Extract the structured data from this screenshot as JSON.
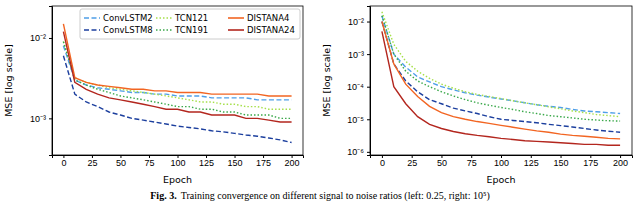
{
  "caption_label": "Fig. 3.",
  "caption": "Training convergence on different signal to noise ratios (left: 0.25, right: 10⁵)",
  "chart_data": [
    {
      "type": "line",
      "xlabel": "Epoch",
      "ylabel": "MSE [log scale]",
      "log": "y",
      "legend": "upper right",
      "xlim": [
        -10,
        210
      ],
      "xticks": [
        0,
        25,
        50,
        75,
        100,
        125,
        150,
        175,
        200
      ],
      "ylim": [
        0.00035,
        0.025
      ],
      "yticks": [
        {
          "value": 0.001,
          "label": "10⁻³"
        },
        {
          "value": 0.01,
          "label": "10⁻²"
        }
      ],
      "x": [
        0,
        10,
        20,
        30,
        40,
        50,
        60,
        70,
        80,
        90,
        100,
        110,
        120,
        130,
        140,
        150,
        160,
        170,
        180,
        190,
        200
      ],
      "series": [
        {
          "name": "ConvLSTM2",
          "color": "#4f9fe8",
          "line_style": "dashed",
          "values": [
            0.008,
            0.003,
            0.0026,
            0.0024,
            0.0023,
            0.0022,
            0.0021,
            0.0021,
            0.002,
            0.002,
            0.0019,
            0.0019,
            0.0019,
            0.0018,
            0.0018,
            0.0018,
            0.0018,
            0.0017,
            0.0017,
            0.0017,
            0.0017
          ]
        },
        {
          "name": "ConvLSTM8",
          "color": "#1c3f9e",
          "line_style": "dashed",
          "values": [
            0.006,
            0.002,
            0.0016,
            0.0014,
            0.0012,
            0.0011,
            0.001,
            0.00095,
            0.0009,
            0.00085,
            0.0008,
            0.00077,
            0.00074,
            0.0007,
            0.00068,
            0.00065,
            0.00062,
            0.0006,
            0.00057,
            0.00054,
            0.0005
          ]
        },
        {
          "name": "TCN121",
          "color": "#a6e04a",
          "line_style": "dotted",
          "values": [
            0.009,
            0.0032,
            0.0028,
            0.0026,
            0.0024,
            0.0023,
            0.0022,
            0.0021,
            0.002,
            0.0019,
            0.0018,
            0.0017,
            0.0016,
            0.0016,
            0.0015,
            0.0015,
            0.0014,
            0.0014,
            0.0013,
            0.0013,
            0.0013
          ]
        },
        {
          "name": "TCN191",
          "color": "#3aa84a",
          "line_style": "dotted",
          "values": [
            0.009,
            0.003,
            0.0026,
            0.0023,
            0.0021,
            0.0019,
            0.0018,
            0.0017,
            0.0016,
            0.0015,
            0.0014,
            0.0014,
            0.0013,
            0.0013,
            0.0012,
            0.0012,
            0.0011,
            0.0011,
            0.0011,
            0.001,
            0.001
          ]
        },
        {
          "name": "DISTANA4",
          "color": "#f26522",
          "line_style": "solid",
          "values": [
            0.015,
            0.0032,
            0.0028,
            0.0026,
            0.0025,
            0.0024,
            0.0023,
            0.0023,
            0.0022,
            0.0022,
            0.0021,
            0.0021,
            0.0021,
            0.002,
            0.002,
            0.002,
            0.002,
            0.002,
            0.0019,
            0.0019,
            0.0019
          ]
        },
        {
          "name": "DISTANA24",
          "color": "#b3261e",
          "line_style": "solid",
          "values": [
            0.012,
            0.0028,
            0.0023,
            0.002,
            0.0018,
            0.0017,
            0.0016,
            0.0015,
            0.0014,
            0.0013,
            0.0013,
            0.0012,
            0.0012,
            0.0011,
            0.0011,
            0.0011,
            0.001,
            0.001,
            0.00095,
            0.0009,
            0.0009
          ]
        }
      ]
    },
    {
      "type": "line",
      "xlabel": "Epoch",
      "ylabel": "MSE [log scale]",
      "log": "y",
      "xlim": [
        -10,
        210
      ],
      "xticks": [
        0,
        25,
        50,
        75,
        100,
        125,
        150,
        175,
        200
      ],
      "ylim": [
        8e-07,
        0.03
      ],
      "yticks": [
        {
          "value": 1e-06,
          "label": "10⁻⁶"
        },
        {
          "value": 1e-05,
          "label": "10⁻⁵"
        },
        {
          "value": 0.0001,
          "label": "10⁻⁴"
        },
        {
          "value": 0.001,
          "label": "10⁻³"
        },
        {
          "value": 0.01,
          "label": "10⁻²"
        }
      ],
      "x": [
        0,
        10,
        20,
        30,
        40,
        50,
        60,
        70,
        80,
        90,
        100,
        110,
        120,
        130,
        140,
        150,
        160,
        170,
        180,
        190,
        200
      ],
      "series": [
        {
          "name": "ConvLSTM2",
          "color": "#4f9fe8",
          "line_style": "dashed",
          "values": [
            0.015,
            0.001,
            0.0004,
            0.0002,
            0.00014,
            0.0001,
            8e-05,
            6.5e-05,
            5.5e-05,
            4.8e-05,
            4.2e-05,
            3.7e-05,
            3.2e-05,
            2.8e-05,
            2.5e-05,
            2.3e-05,
            2e-05,
            1.8e-05,
            1.7e-05,
            1.6e-05,
            1.5e-05
          ]
        },
        {
          "name": "ConvLSTM8",
          "color": "#1c3f9e",
          "line_style": "dashed",
          "values": [
            0.01,
            0.0005,
            0.00015,
            7e-05,
            4e-05,
            3e-05,
            2.2e-05,
            1.8e-05,
            1.5e-05,
            1.2e-05,
            1e-05,
            9.2e-06,
            8.5e-06,
            7.8e-06,
            7e-06,
            6.4e-06,
            5.8e-06,
            5.2e-06,
            4.7e-06,
            4.3e-06,
            4e-06
          ]
        },
        {
          "name": "TCN121",
          "color": "#a6e04a",
          "line_style": "dotted",
          "values": [
            0.02,
            0.002,
            0.0006,
            0.0003,
            0.00018,
            0.00012,
            9e-05,
            7e-05,
            5.8e-05,
            5e-05,
            4.3e-05,
            3.7e-05,
            3.2e-05,
            2.8e-05,
            2.4e-05,
            2.1e-05,
            1.8e-05,
            1.6e-05,
            1.4e-05,
            1.3e-05,
            1.2e-05
          ]
        },
        {
          "name": "TCN191",
          "color": "#3aa84a",
          "line_style": "dotted",
          "values": [
            0.015,
            0.001,
            0.0003,
            0.00015,
            0.0001,
            7e-05,
            5.2e-05,
            4e-05,
            3.2e-05,
            2.7e-05,
            2.3e-05,
            2e-05,
            1.7e-05,
            1.5e-05,
            1.3e-05,
            1.2e-05,
            1.1e-05,
            1e-05,
            9.5e-06,
            9e-06,
            8.8e-06
          ]
        },
        {
          "name": "DISTANA4",
          "color": "#f26522",
          "line_style": "solid",
          "values": [
            0.01,
            0.0005,
            0.00012,
            5e-05,
            2.5e-05,
            1.6e-05,
            1.2e-05,
            1e-05,
            8.5e-06,
            7.5e-06,
            6.5e-06,
            5.7e-06,
            5e-06,
            4.4e-06,
            4e-06,
            3.5e-06,
            3.2e-06,
            3e-06,
            2.8e-06,
            2.6e-06,
            2.5e-06
          ]
        },
        {
          "name": "DISTANA24",
          "color": "#b3261e",
          "line_style": "solid",
          "values": [
            0.005,
            0.0001,
            3e-05,
            1.2e-05,
            7e-06,
            5.2e-06,
            4.2e-06,
            3.6e-06,
            3.2e-06,
            2.9e-06,
            2.6e-06,
            2.4e-06,
            2.2e-06,
            2.1e-06,
            2e-06,
            1.9e-06,
            1.8e-06,
            1.7e-06,
            1.7e-06,
            1.6e-06,
            1.6e-06
          ]
        }
      ]
    }
  ]
}
